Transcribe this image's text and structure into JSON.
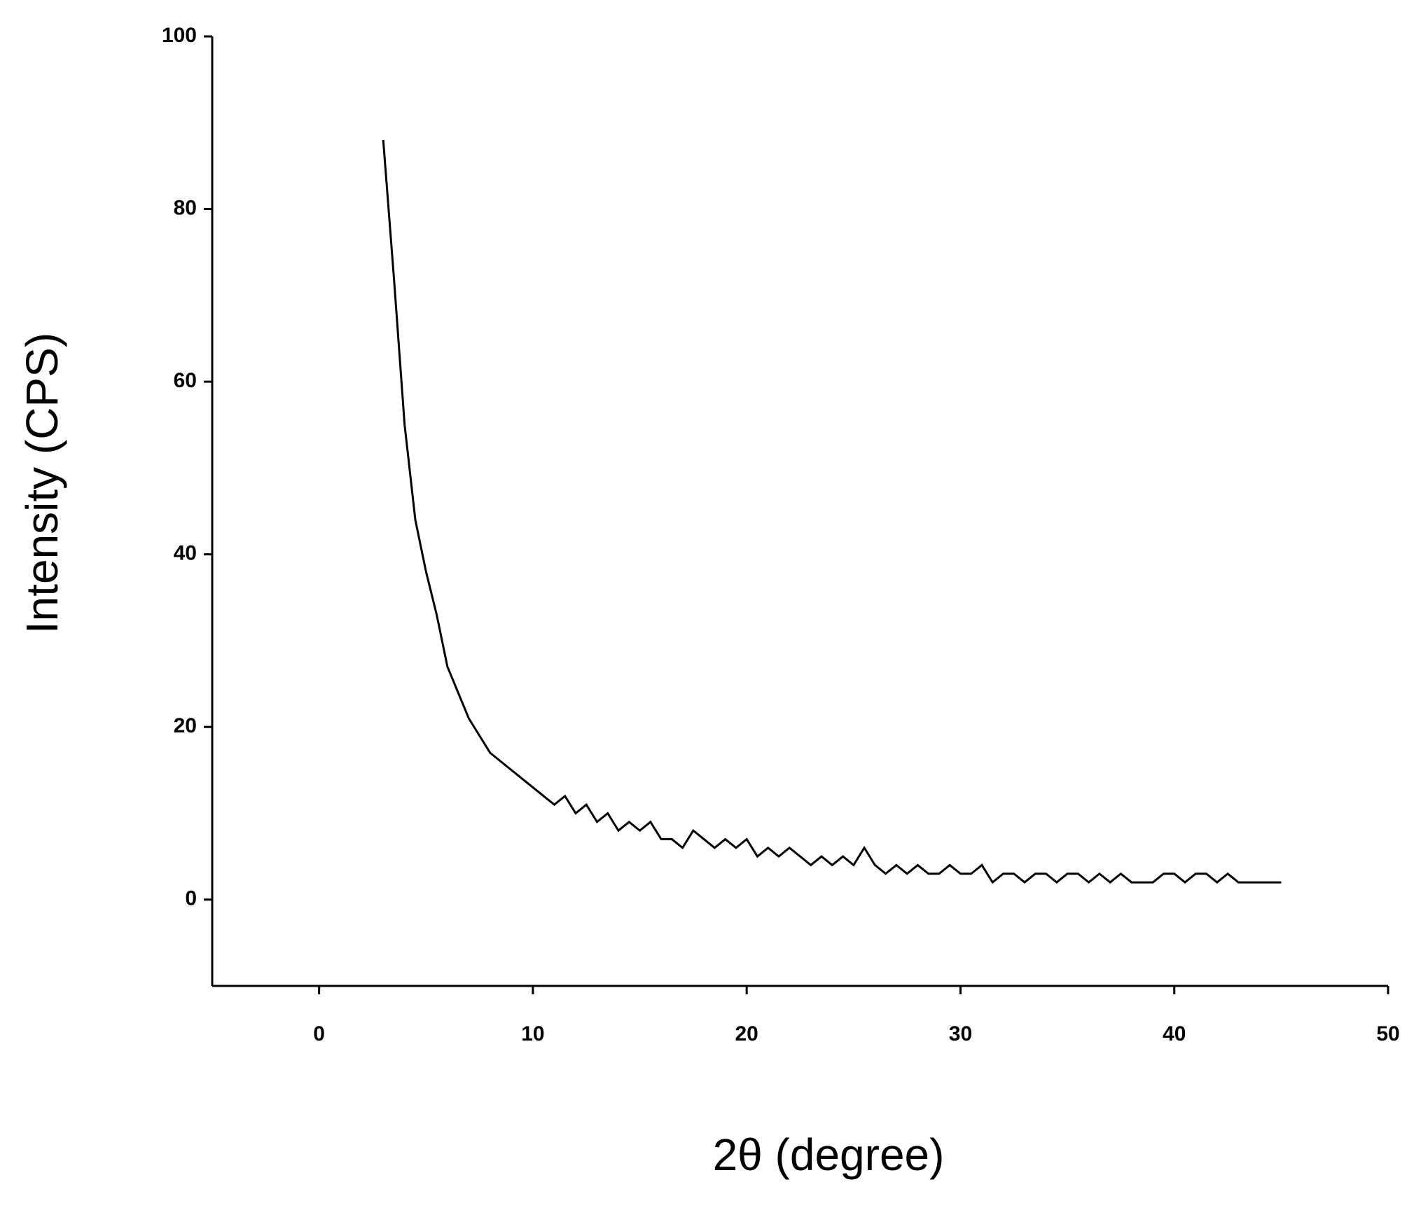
{
  "chart_data": {
    "type": "line",
    "x_label": "2θ (degree)",
    "y_label": "Intensity (CPS)",
    "x": [
      3,
      3.5,
      4,
      4.5,
      5,
      5.5,
      6,
      6.5,
      7,
      7.5,
      8,
      8.5,
      9,
      9.5,
      10,
      10.5,
      11,
      11.5,
      12,
      12.5,
      13,
      13.5,
      14,
      14.5,
      15,
      15.5,
      16,
      16.5,
      17,
      17.5,
      18,
      18.5,
      19,
      19.5,
      20,
      20.5,
      21,
      21.5,
      22,
      22.5,
      23,
      23.5,
      24,
      24.5,
      25,
      25.5,
      26,
      26.5,
      27,
      27.5,
      28,
      28.5,
      29,
      29.5,
      30,
      30.5,
      31,
      31.5,
      32,
      32.5,
      33,
      33.5,
      34,
      34.5,
      35,
      35.5,
      36,
      36.5,
      37,
      37.5,
      38,
      38.5,
      39,
      39.5,
      40,
      40.5,
      41,
      41.5,
      42,
      42.5,
      43,
      43.5,
      44,
      44.5,
      45
    ],
    "series": [
      {
        "color": "#000000",
        "values": [
          88,
          72,
          55,
          44,
          38,
          33,
          27,
          24,
          21,
          19,
          17,
          16,
          15,
          14,
          13,
          12,
          11,
          12,
          10,
          11,
          9,
          10,
          8,
          9,
          8,
          9,
          7,
          7,
          6,
          8,
          7,
          6,
          7,
          6,
          7,
          5,
          6,
          5,
          6,
          5,
          4,
          5,
          4,
          5,
          4,
          6,
          4,
          3,
          4,
          3,
          4,
          3,
          3,
          4,
          3,
          3,
          4,
          2,
          3,
          3,
          2,
          3,
          3,
          2,
          3,
          3,
          2,
          3,
          2,
          3,
          2,
          2,
          2,
          3,
          3,
          2,
          3,
          3,
          2,
          3,
          2,
          2,
          2,
          2,
          2
        ]
      }
    ],
    "xlim": [
      -5,
      50
    ],
    "xticks": [
      0,
      10,
      20,
      30,
      40,
      50
    ],
    "ylim": [
      -10,
      100
    ],
    "yticks": [
      0,
      20,
      40,
      60,
      80,
      100
    ]
  }
}
